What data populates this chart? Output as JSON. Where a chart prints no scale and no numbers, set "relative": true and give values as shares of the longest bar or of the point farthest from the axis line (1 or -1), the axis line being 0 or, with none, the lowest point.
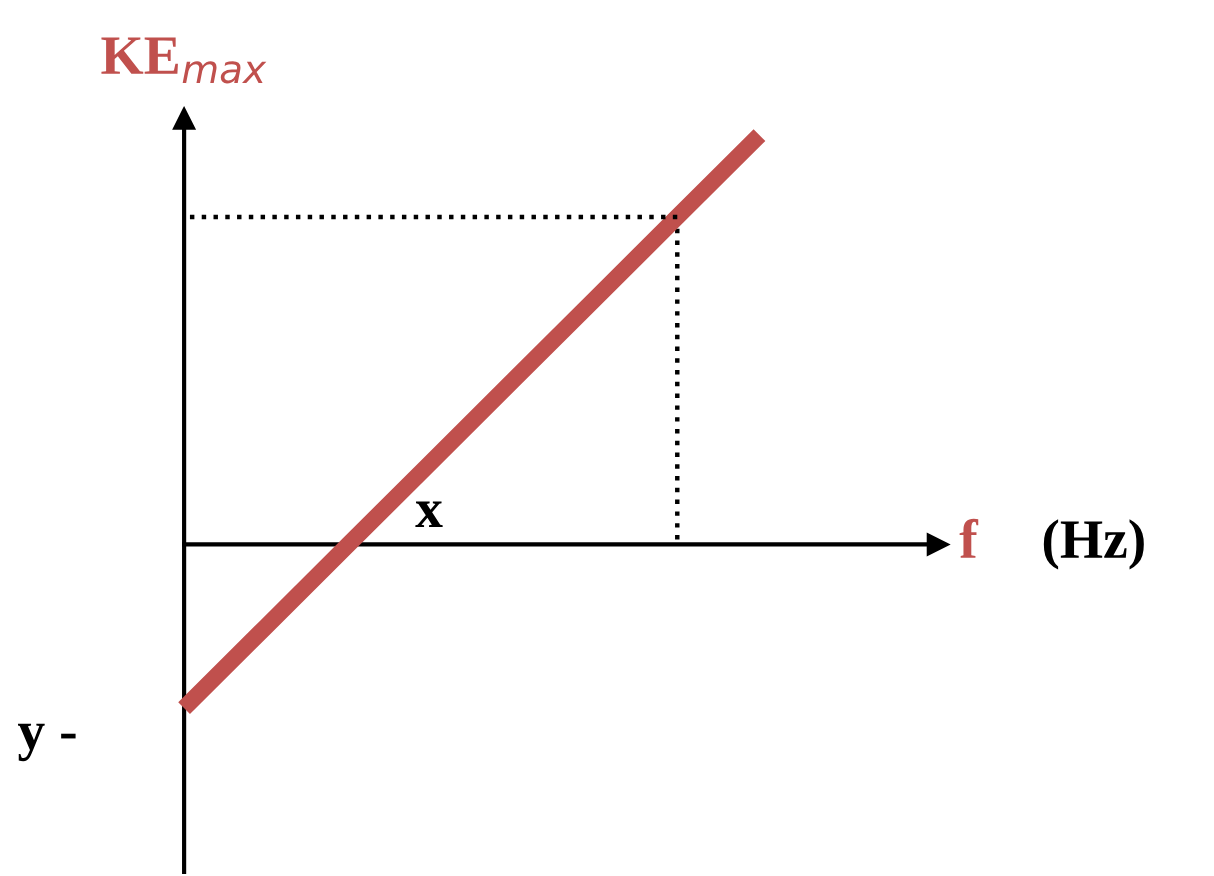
{
  "chart_data": {
    "type": "line",
    "relative": true,
    "ylabel": "KE$_{max}$",
    "xlabel": "f",
    "legend": false,
    "categories": [
      null,
      null,
      null,
      null,
      null,
      null,
      null,
      null
    ],
    "series": [
      {
        "color": "#c0504d",
        "values": [
          -0.4,
          -0.2,
          0,
          0.2,
          0.4,
          0.6,
          0.8,
          1
        ]
      },
      {
        "type": "line",
        "color": "#000000",
        "line_style": "dotted",
        "values": [
          0.8,
          0.8,
          0.8,
          0.8,
          0.8,
          0.8,
          0.8,
          null
        ]
      }
    ],
    "annotations": [
      "(Hz)",
      "x",
      "y -"
    ]
  }
}
